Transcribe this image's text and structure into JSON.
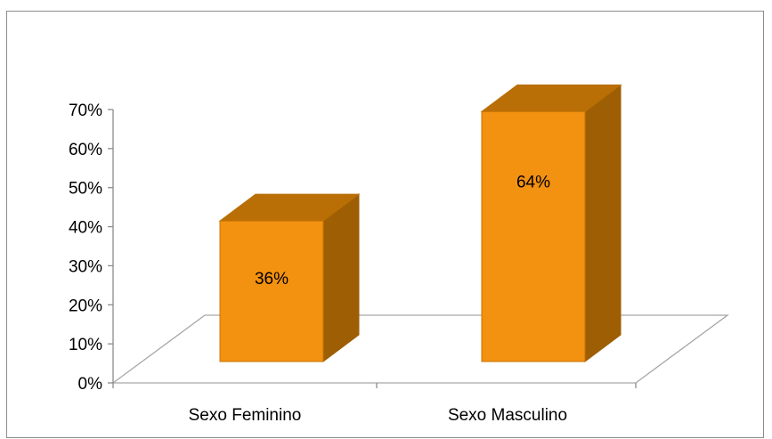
{
  "chart_data": {
    "type": "bar",
    "style": "3d-column",
    "categories": [
      "Sexo Feminino",
      "Sexo Masculino"
    ],
    "values": [
      36,
      64
    ],
    "data_labels": [
      "36%",
      "64%"
    ],
    "yticks": [
      "0%",
      "10%",
      "20%",
      "30%",
      "40%",
      "50%",
      "60%",
      "70%"
    ],
    "ylim": [
      0,
      70
    ],
    "grid": false,
    "legend": "none",
    "title": "",
    "xlabel": "",
    "ylabel": "",
    "colors": {
      "bar_front": "#F39110",
      "bar_top": "#B96E06",
      "bar_side": "#9E5E04",
      "bar_edge": "#C47506",
      "floor_line": "#a6a6a6",
      "axis_line": "#8c8c8c",
      "frame": "#8c8c8c"
    }
  }
}
